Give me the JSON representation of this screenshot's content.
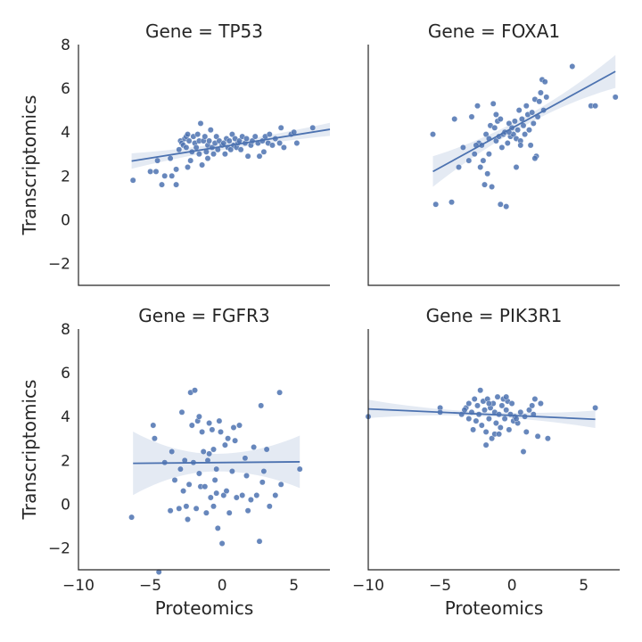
{
  "chart_data": {
    "type": "scatter",
    "xlabel": "Proteomics",
    "ylabel": "Transcriptomics",
    "xlim": [
      -10,
      7.5
    ],
    "ylim": [
      -3,
      8
    ],
    "xticks": [
      -10,
      -5,
      0,
      5
    ],
    "yticks": [
      -2,
      0,
      2,
      4,
      6,
      8
    ],
    "sharex": true,
    "sharey": true,
    "grid": false,
    "marker_color": "#4c72b0",
    "line_color": "#4c72b0",
    "ci_color": "#4c72b0",
    "panels": [
      {
        "title": "Gene = TP53",
        "row": 0,
        "col": 0,
        "fit": {
          "slope": 0.105,
          "intercept": 3.34
        },
        "x_range": [
          -6.3,
          7.5
        ],
        "ci_halfwidth": [
          0.35,
          0.16,
          0.3
        ],
        "points": [
          [
            -6.2,
            1.8
          ],
          [
            -5.0,
            2.2
          ],
          [
            -4.6,
            2.2
          ],
          [
            -4.5,
            2.7
          ],
          [
            -4.2,
            1.6
          ],
          [
            -4.0,
            2.0
          ],
          [
            -3.6,
            2.8
          ],
          [
            -3.5,
            2.0
          ],
          [
            -3.2,
            1.6
          ],
          [
            -3.2,
            2.3
          ],
          [
            -3.0,
            3.2
          ],
          [
            -2.9,
            3.6
          ],
          [
            -2.8,
            3.5
          ],
          [
            -2.7,
            3.4
          ],
          [
            -2.6,
            3.7
          ],
          [
            -2.5,
            3.8
          ],
          [
            -2.5,
            3.3
          ],
          [
            -2.4,
            3.9
          ],
          [
            -2.3,
            3.6
          ],
          [
            -2.2,
            2.7
          ],
          [
            -2.1,
            3.1
          ],
          [
            -2.0,
            3.8
          ],
          [
            -1.9,
            3.5
          ],
          [
            -1.8,
            3.3
          ],
          [
            -1.7,
            3.9
          ],
          [
            -1.6,
            3.6
          ],
          [
            -1.6,
            3.0
          ],
          [
            -1.5,
            4.4
          ],
          [
            -1.4,
            2.5
          ],
          [
            -1.3,
            3.6
          ],
          [
            -1.2,
            3.8
          ],
          [
            -1.1,
            3.1
          ],
          [
            -1.0,
            2.8
          ],
          [
            -1.0,
            3.4
          ],
          [
            -0.9,
            3.6
          ],
          [
            -0.8,
            4.1
          ],
          [
            -0.7,
            3.3
          ],
          [
            -0.6,
            3.0
          ],
          [
            -0.5,
            3.5
          ],
          [
            -0.4,
            3.8
          ],
          [
            -0.3,
            3.2
          ],
          [
            -0.2,
            3.6
          ],
          [
            0.0,
            3.4
          ],
          [
            0.1,
            3.5
          ],
          [
            0.2,
            3.0
          ],
          [
            0.3,
            3.7
          ],
          [
            0.4,
            3.3
          ],
          [
            0.5,
            3.6
          ],
          [
            0.6,
            3.2
          ],
          [
            0.7,
            3.9
          ],
          [
            0.8,
            3.4
          ],
          [
            0.9,
            3.7
          ],
          [
            1.0,
            3.3
          ],
          [
            1.1,
            3.5
          ],
          [
            1.2,
            3.6
          ],
          [
            1.3,
            3.2
          ],
          [
            1.4,
            3.8
          ],
          [
            1.6,
            3.5
          ],
          [
            1.7,
            3.7
          ],
          [
            1.8,
            2.9
          ],
          [
            2.0,
            3.4
          ],
          [
            2.1,
            3.6
          ],
          [
            2.3,
            3.8
          ],
          [
            2.5,
            3.5
          ],
          [
            2.6,
            2.9
          ],
          [
            2.8,
            3.6
          ],
          [
            3.0,
            3.8
          ],
          [
            3.2,
            3.5
          ],
          [
            3.3,
            3.9
          ],
          [
            3.5,
            3.4
          ],
          [
            3.7,
            3.7
          ],
          [
            4.0,
            3.5
          ],
          [
            4.1,
            4.2
          ],
          [
            4.3,
            3.3
          ],
          [
            4.8,
            3.9
          ],
          [
            5.0,
            4.0
          ],
          [
            5.2,
            3.5
          ],
          [
            6.3,
            4.2
          ],
          [
            2.9,
            3.1
          ],
          [
            -2.4,
            2.4
          ]
        ]
      },
      {
        "title": "Gene = FOXA1",
        "row": 0,
        "col": 1,
        "fit": {
          "slope": 0.36,
          "intercept": 4.18
        },
        "x_range": [
          -5.5,
          7.2
        ],
        "ci_halfwidth": [
          0.7,
          0.2,
          0.75
        ],
        "points": [
          [
            -5.5,
            3.9
          ],
          [
            -5.3,
            0.7
          ],
          [
            -4.2,
            0.8
          ],
          [
            -4.0,
            4.6
          ],
          [
            -3.7,
            2.4
          ],
          [
            -3.4,
            3.3
          ],
          [
            -3.0,
            2.7
          ],
          [
            -2.8,
            4.7
          ],
          [
            -2.6,
            3.0
          ],
          [
            -2.4,
            5.2
          ],
          [
            -2.3,
            3.5
          ],
          [
            -2.2,
            2.4
          ],
          [
            -2.1,
            3.4
          ],
          [
            -2.0,
            2.7
          ],
          [
            -1.9,
            1.6
          ],
          [
            -1.8,
            3.9
          ],
          [
            -1.7,
            2.1
          ],
          [
            -1.6,
            3.7
          ],
          [
            -1.5,
            4.3
          ],
          [
            -1.4,
            1.5
          ],
          [
            -1.3,
            5.3
          ],
          [
            -1.2,
            4.2
          ],
          [
            -1.1,
            3.6
          ],
          [
            -1.0,
            4.5
          ],
          [
            -0.9,
            3.8
          ],
          [
            -0.8,
            4.6
          ],
          [
            -0.7,
            3.3
          ],
          [
            -0.6,
            3.9
          ],
          [
            -0.5,
            4.0
          ],
          [
            -0.4,
            0.6
          ],
          [
            -0.3,
            3.5
          ],
          [
            -0.2,
            4.4
          ],
          [
            -0.1,
            3.8
          ],
          [
            0.0,
            4.2
          ],
          [
            0.1,
            3.9
          ],
          [
            0.2,
            4.5
          ],
          [
            0.3,
            3.7
          ],
          [
            0.4,
            4.1
          ],
          [
            0.5,
            5.0
          ],
          [
            0.6,
            3.6
          ],
          [
            0.7,
            4.6
          ],
          [
            0.8,
            4.3
          ],
          [
            0.9,
            3.9
          ],
          [
            1.0,
            5.2
          ],
          [
            1.1,
            4.8
          ],
          [
            1.2,
            4.1
          ],
          [
            1.3,
            3.4
          ],
          [
            1.4,
            4.9
          ],
          [
            1.5,
            4.4
          ],
          [
            1.6,
            5.5
          ],
          [
            1.7,
            2.9
          ],
          [
            1.8,
            4.7
          ],
          [
            1.9,
            5.4
          ],
          [
            2.0,
            5.8
          ],
          [
            2.1,
            6.4
          ],
          [
            2.2,
            5.0
          ],
          [
            2.3,
            6.3
          ],
          [
            2.4,
            5.6
          ],
          [
            4.2,
            7.0
          ],
          [
            5.5,
            5.2
          ],
          [
            7.2,
            5.6
          ],
          [
            -0.8,
            0.7
          ],
          [
            -1.6,
            3.0
          ],
          [
            0.3,
            2.4
          ],
          [
            1.6,
            2.8
          ],
          [
            -2.5,
            3.4
          ],
          [
            5.8,
            5.2
          ],
          [
            -0.2,
            4.0
          ],
          [
            0.6,
            3.4
          ],
          [
            -1.1,
            4.8
          ]
        ]
      },
      {
        "title": "Gene = FGFR3",
        "row": 1,
        "col": 0,
        "fit": {
          "slope": 0.006,
          "intercept": 1.9
        },
        "x_range": [
          -6.2,
          5.4
        ],
        "ci_halfwidth": [
          1.45,
          0.4,
          1.2
        ],
        "points": [
          [
            -6.3,
            -0.6
          ],
          [
            -4.8,
            3.6
          ],
          [
            -4.7,
            3.0
          ],
          [
            -4.4,
            -3.1
          ],
          [
            -4.0,
            1.9
          ],
          [
            -3.5,
            2.4
          ],
          [
            -3.3,
            1.1
          ],
          [
            -3.0,
            -0.2
          ],
          [
            -2.8,
            4.2
          ],
          [
            -2.7,
            0.6
          ],
          [
            -2.6,
            2.0
          ],
          [
            -2.5,
            -0.1
          ],
          [
            -2.4,
            -0.7
          ],
          [
            -2.3,
            0.9
          ],
          [
            -2.2,
            5.1
          ],
          [
            -2.1,
            3.6
          ],
          [
            -2.0,
            1.9
          ],
          [
            -1.9,
            5.2
          ],
          [
            -1.8,
            -0.2
          ],
          [
            -1.7,
            3.8
          ],
          [
            -1.6,
            1.4
          ],
          [
            -1.5,
            0.8
          ],
          [
            -1.4,
            3.3
          ],
          [
            -1.3,
            2.4
          ],
          [
            -1.2,
            0.8
          ],
          [
            -1.1,
            -0.4
          ],
          [
            -1.0,
            2.0
          ],
          [
            -0.9,
            3.7
          ],
          [
            -0.8,
            0.3
          ],
          [
            -0.7,
            3.4
          ],
          [
            -0.6,
            -0.1
          ],
          [
            -0.5,
            1.1
          ],
          [
            -0.4,
            0.5
          ],
          [
            -0.3,
            -1.1
          ],
          [
            -0.2,
            3.8
          ],
          [
            -0.1,
            3.3
          ],
          [
            0.0,
            -1.8
          ],
          [
            0.1,
            0.4
          ],
          [
            0.2,
            2.7
          ],
          [
            0.3,
            0.6
          ],
          [
            0.4,
            3.0
          ],
          [
            0.5,
            -0.4
          ],
          [
            0.7,
            1.5
          ],
          [
            0.8,
            3.5
          ],
          [
            1.0,
            0.3
          ],
          [
            1.2,
            3.6
          ],
          [
            1.4,
            0.4
          ],
          [
            1.6,
            2.1
          ],
          [
            1.8,
            -0.3
          ],
          [
            2.0,
            0.2
          ],
          [
            2.2,
            2.6
          ],
          [
            2.4,
            0.4
          ],
          [
            2.6,
            -1.7
          ],
          [
            2.7,
            4.5
          ],
          [
            2.9,
            1.5
          ],
          [
            3.3,
            -0.1
          ],
          [
            3.7,
            0.4
          ],
          [
            4.0,
            5.1
          ],
          [
            4.1,
            0.9
          ],
          [
            5.4,
            1.6
          ],
          [
            -1.6,
            4.0
          ],
          [
            -0.6,
            2.5
          ],
          [
            0.9,
            2.9
          ],
          [
            -2.9,
            1.6
          ],
          [
            3.1,
            2.5
          ],
          [
            -0.9,
            2.3
          ],
          [
            1.7,
            1.3
          ],
          [
            -3.6,
            -0.3
          ],
          [
            2.8,
            1.0
          ],
          [
            -0.4,
            1.6
          ]
        ]
      },
      {
        "title": "Gene = PIK3R1",
        "row": 1,
        "col": 1,
        "fit": {
          "slope": -0.03,
          "intercept": 4.05
        },
        "x_range": [
          -10,
          5.8
        ],
        "ci_halfwidth": [
          0.42,
          0.1,
          0.4
        ],
        "points": [
          [
            -10.0,
            4.0
          ],
          [
            -5.0,
            4.4
          ],
          [
            -5.0,
            4.2
          ],
          [
            -3.5,
            4.1
          ],
          [
            -3.2,
            4.4
          ],
          [
            -3.0,
            3.9
          ],
          [
            -3.0,
            4.6
          ],
          [
            -2.8,
            4.2
          ],
          [
            -2.6,
            4.8
          ],
          [
            -2.5,
            3.8
          ],
          [
            -2.4,
            4.5
          ],
          [
            -2.3,
            4.1
          ],
          [
            -2.2,
            5.2
          ],
          [
            -2.1,
            3.6
          ],
          [
            -2.0,
            4.7
          ],
          [
            -1.9,
            4.3
          ],
          [
            -1.8,
            3.3
          ],
          [
            -1.8,
            2.7
          ],
          [
            -1.7,
            4.8
          ],
          [
            -1.6,
            3.9
          ],
          [
            -1.5,
            4.4
          ],
          [
            -1.4,
            3.0
          ],
          [
            -1.3,
            4.6
          ],
          [
            -1.2,
            4.2
          ],
          [
            -1.1,
            3.7
          ],
          [
            -1.0,
            4.9
          ],
          [
            -0.9,
            4.1
          ],
          [
            -0.8,
            3.5
          ],
          [
            -0.7,
            4.5
          ],
          [
            -0.6,
            4.8
          ],
          [
            -0.5,
            3.9
          ],
          [
            -0.4,
            4.3
          ],
          [
            -0.3,
            4.7
          ],
          [
            -0.2,
            3.4
          ],
          [
            -0.1,
            4.1
          ],
          [
            0.0,
            4.6
          ],
          [
            0.1,
            3.8
          ],
          [
            0.2,
            4.0
          ],
          [
            0.4,
            3.7
          ],
          [
            0.6,
            4.2
          ],
          [
            0.8,
            2.4
          ],
          [
            1.0,
            3.3
          ],
          [
            1.2,
            4.3
          ],
          [
            1.4,
            4.5
          ],
          [
            1.6,
            4.8
          ],
          [
            1.8,
            3.1
          ],
          [
            2.0,
            4.6
          ],
          [
            2.5,
            3.0
          ],
          [
            5.8,
            4.4
          ],
          [
            -1.2,
            3.2
          ],
          [
            0.3,
            3.9
          ],
          [
            -2.7,
            3.4
          ],
          [
            0.9,
            4.0
          ],
          [
            -0.4,
            4.9
          ],
          [
            1.5,
            4.1
          ],
          [
            -1.6,
            4.6
          ],
          [
            -3.3,
            4.3
          ],
          [
            -0.9,
            3.2
          ]
        ]
      }
    ]
  }
}
